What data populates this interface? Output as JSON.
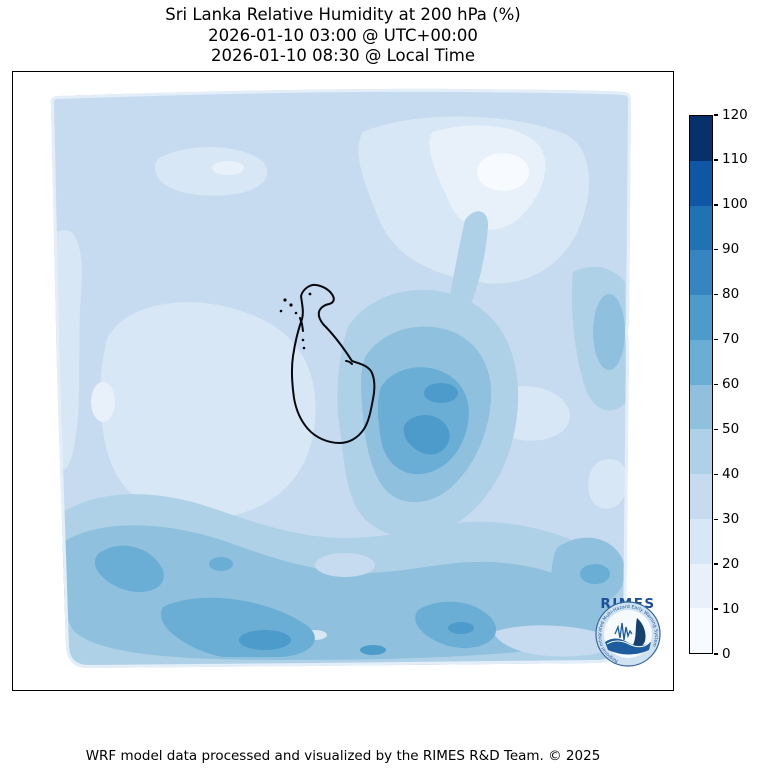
{
  "figure": {
    "title_line1": "Sri Lanka Relative Humidity at 200 hPa (%)",
    "title_line2": "2026-01-10 03:00 @ UTC+00:00",
    "title_line3": "2026-01-10 08:30 @ Local Time",
    "caption": "WRF model data processed and visualized by the RIMES R&D Team. © 2025",
    "background_color": "#ffffff"
  },
  "logo": {
    "label": "RIMES",
    "ring_text": "Regional Integrated Multi-Hazard Early Warning System",
    "ring_fill": "#cfe2f2",
    "ring_edge": "#34669c",
    "inner_fill": "#f6fafd",
    "accent": "#1d5c9e",
    "dark_accent": "#16406f",
    "label_color": "#1c4f97"
  },
  "chart_data": {
    "type": "heatmap",
    "subtype": "filled-contour weather map",
    "title": "Sri Lanka Relative Humidity at 200 hPa (%)",
    "valid_time_utc": "2026-01-10 03:00 @ UTC+00:00",
    "valid_time_local": "2026-01-10 08:30 @ Local Time",
    "variable": "Relative Humidity",
    "pressure_level": "200 hPa",
    "units": "%",
    "overlay": "Sri Lanka coastline outline (black)",
    "legend_position": "right vertical colorbar",
    "colorbar": {
      "min": 0,
      "max": 120,
      "tick_step": 10,
      "ticks": [
        0,
        10,
        20,
        30,
        40,
        50,
        60,
        70,
        80,
        90,
        100,
        110,
        120
      ],
      "segment_colors": [
        "#f7fbff",
        "#e8f1fa",
        "#d8e7f5",
        "#c6dbef",
        "#aed1e7",
        "#8fc1de",
        "#6aaed6",
        "#4d9bca",
        "#3585c0",
        "#2171b5",
        "#0f57a5",
        "#08306b"
      ]
    },
    "observed_field_features": [
      {
        "area": "northern and central domain background",
        "value_range_pct": "20-40"
      },
      {
        "area": "pale patch north-east of centre",
        "value_range_pct": "0-20"
      },
      {
        "area": "pale area west of Sri Lanka island",
        "value_range_pct": "20-30"
      },
      {
        "area": "broad maximum south-east of Sri Lanka",
        "value_range_pct": "50-80"
      },
      {
        "area": "south-west diagonal bands",
        "value_range_pct": "50-80"
      },
      {
        "area": "southern strip of domain",
        "value_range_pct": "40-70"
      },
      {
        "area": "band along eastern edge, mid-height",
        "value_range_pct": "40-60"
      }
    ]
  }
}
